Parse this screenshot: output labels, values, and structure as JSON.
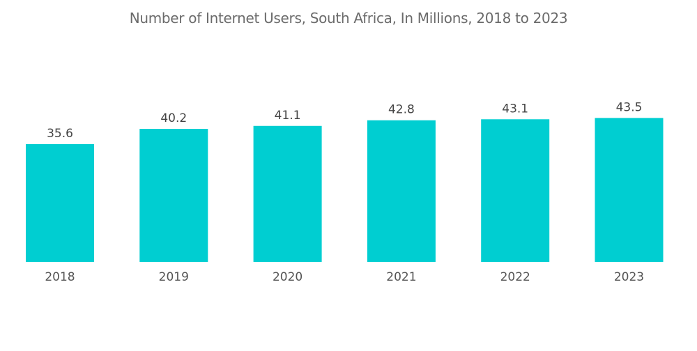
{
  "chart_data": {
    "type": "bar",
    "title": "Number of Internet Users, South Africa, In Millions, 2018 to 2023",
    "categories": [
      "2018",
      "2019",
      "2020",
      "2021",
      "2022",
      "2023"
    ],
    "values": [
      35.6,
      40.2,
      41.1,
      42.8,
      43.1,
      43.5
    ],
    "value_labels": [
      "35.6",
      "40.2",
      "41.1",
      "42.8",
      "43.1",
      "43.5"
    ],
    "xlabel": "",
    "ylabel": "",
    "ylim": [
      0,
      45
    ],
    "grid": false,
    "legend": "none",
    "bar_color": "#00CED1"
  }
}
